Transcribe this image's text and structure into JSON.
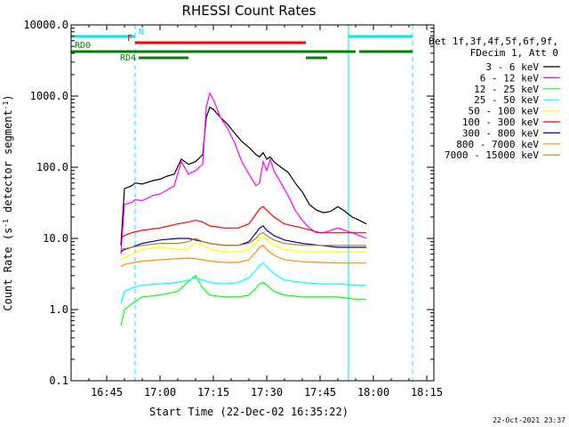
{
  "chart_data": {
    "type": "line",
    "title": "RHESSI Count Rates",
    "xlabel": "Start Time (22-Dec-02 16:35:22)",
    "ylabel_main": "Count Rate (s",
    "ylabel_sup1": "-1",
    "ylabel_mid": " detector segment",
    "ylabel_sup2": "-1",
    "ylabel_end": ")",
    "y_scale": "log",
    "xlim": [
      "16:35",
      "18:17"
    ],
    "ylim": [
      0.1,
      10000
    ],
    "x_ticks": [
      "16:45",
      "17:00",
      "17:15",
      "17:30",
      "17:45",
      "18:00",
      "18:15"
    ],
    "y_ticks": [
      "0.1",
      "1.0",
      "10.0",
      "100.0",
      "1000.0",
      "10000.0"
    ],
    "legend_header": [
      "Det 1f,3f,4f,5f,6f,9f,",
      "FDecim 1, Att 0"
    ],
    "legend_placement": "right",
    "timestamp": "22-Oct-2021 23:37",
    "vertical_lines": [
      {
        "time": "16:35",
        "style": "solid",
        "color": "#00e5ee"
      },
      {
        "time": "16:53",
        "style": "dashed",
        "color": "#00e5ee"
      },
      {
        "time": "17:53",
        "style": "solid",
        "color": "#00e5ee"
      },
      {
        "time": "18:11",
        "style": "dashed",
        "color": "#00e5ee"
      }
    ],
    "flag_bars": [
      {
        "label": "N",
        "color": "#00e5ee",
        "segments": [
          [
            "16:35",
            "16:53"
          ],
          [
            "17:53",
            "18:11"
          ]
        ]
      },
      {
        "label": "F",
        "color": "#ff0000",
        "segments": [
          [
            "16:53",
            "17:41"
          ]
        ]
      },
      {
        "label": "RD0",
        "color": "#008000",
        "segments": [
          [
            "16:35",
            "17:55"
          ],
          [
            "17:56",
            "18:11"
          ]
        ]
      },
      {
        "label": "RD4",
        "color": "#008000",
        "segments": [
          [
            "16:54",
            "17:08"
          ],
          [
            "17:41",
            "17:47"
          ]
        ]
      }
    ],
    "series": [
      {
        "name": "3 - 6 keV",
        "color": "#000000",
        "x": [
          "16:49",
          "16:50",
          "16:52",
          "16:53",
          "16:55",
          "16:58",
          "17:00",
          "17:02",
          "17:04",
          "17:06",
          "17:08",
          "17:10",
          "17:12",
          "17:13",
          "17:14",
          "17:15",
          "17:17",
          "17:19",
          "17:21",
          "17:23",
          "17:25",
          "17:27",
          "17:28",
          "17:29",
          "17:30",
          "17:31",
          "17:32",
          "17:34",
          "17:36",
          "17:38",
          "17:40",
          "17:42",
          "17:44",
          "17:46",
          "17:48",
          "17:50",
          "17:52",
          "17:54",
          "17:56",
          "17:58"
        ],
        "y": [
          8,
          50,
          55,
          60,
          58,
          65,
          68,
          75,
          80,
          130,
          110,
          120,
          150,
          500,
          700,
          650,
          500,
          400,
          300,
          230,
          190,
          150,
          140,
          160,
          130,
          140,
          120,
          100,
          85,
          60,
          45,
          30,
          25,
          23,
          24,
          28,
          24,
          20,
          18,
          16
        ]
      },
      {
        "name": "6 - 12 keV",
        "color": "#ff00ff",
        "x": [
          "16:49",
          "16:50",
          "16:52",
          "16:53",
          "16:55",
          "16:58",
          "17:00",
          "17:02",
          "17:04",
          "17:06",
          "17:08",
          "17:10",
          "17:12",
          "17:13",
          "17:14",
          "17:15",
          "17:17",
          "17:19",
          "17:21",
          "17:23",
          "17:25",
          "17:27",
          "17:28",
          "17:29",
          "17:30",
          "17:31",
          "17:32",
          "17:34",
          "17:36",
          "17:38",
          "17:40",
          "17:42",
          "17:44",
          "17:46",
          "17:48",
          "17:50",
          "17:52",
          "17:54",
          "17:56",
          "17:58"
        ],
        "y": [
          6,
          30,
          32,
          35,
          34,
          40,
          42,
          48,
          55,
          120,
          80,
          90,
          110,
          700,
          1100,
          900,
          500,
          350,
          220,
          120,
          80,
          55,
          60,
          120,
          90,
          130,
          90,
          60,
          40,
          25,
          18,
          14,
          12,
          12,
          13,
          14,
          13,
          12,
          11,
          10
        ]
      },
      {
        "name": "12 - 25 keV",
        "color": "#00ff00",
        "x": [
          "16:49",
          "16:50",
          "16:52",
          "16:55",
          "17:00",
          "17:05",
          "17:08",
          "17:10",
          "17:12",
          "17:14",
          "17:18",
          "17:22",
          "17:25",
          "17:27",
          "17:28",
          "17:29",
          "17:30",
          "17:32",
          "17:35",
          "17:40",
          "17:45",
          "17:50",
          "17:55",
          "17:58"
        ],
        "y": [
          0.6,
          1.0,
          1.2,
          1.5,
          1.6,
          1.8,
          2.5,
          3.0,
          2.0,
          1.6,
          1.5,
          1.5,
          1.6,
          2.0,
          2.3,
          2.4,
          2.2,
          1.8,
          1.6,
          1.5,
          1.5,
          1.5,
          1.4,
          1.4
        ]
      },
      {
        "name": "25 - 50 keV",
        "color": "#00ffff",
        "x": [
          "16:49",
          "16:50",
          "16:52",
          "16:55",
          "17:00",
          "17:05",
          "17:08",
          "17:10",
          "17:12",
          "17:14",
          "17:18",
          "17:22",
          "17:25",
          "17:27",
          "17:28",
          "17:29",
          "17:30",
          "17:32",
          "17:35",
          "17:40",
          "17:45",
          "17:50",
          "17:55",
          "17:58"
        ],
        "y": [
          1.2,
          1.8,
          2.0,
          2.2,
          2.3,
          2.4,
          2.6,
          2.8,
          2.6,
          2.4,
          2.3,
          2.4,
          2.8,
          3.6,
          4.2,
          4.5,
          4.0,
          3.2,
          2.6,
          2.4,
          2.3,
          2.3,
          2.2,
          2.2
        ]
      },
      {
        "name": "50 - 100 keV",
        "color": "#ffff00",
        "x": [
          "16:49",
          "16:52",
          "16:55",
          "17:00",
          "17:05",
          "17:08",
          "17:10",
          "17:12",
          "17:14",
          "17:18",
          "17:22",
          "17:25",
          "17:27",
          "17:28",
          "17:29",
          "17:30",
          "17:32",
          "17:35",
          "17:40",
          "17:45",
          "17:50",
          "17:55",
          "17:58"
        ],
        "y": [
          5,
          6,
          7,
          7.5,
          7,
          7,
          9,
          8,
          7,
          6.5,
          6.5,
          7,
          8.5,
          10,
          10.5,
          9.5,
          8,
          7,
          6.5,
          6.5,
          6.5,
          6.5,
          6.5
        ]
      },
      {
        "name": "100 - 300 keV",
        "color": "#ff0000",
        "x": [
          "16:49",
          "16:50",
          "16:52",
          "16:55",
          "17:00",
          "17:05",
          "17:08",
          "17:10",
          "17:12",
          "17:14",
          "17:18",
          "17:22",
          "17:25",
          "17:27",
          "17:28",
          "17:29",
          "17:30",
          "17:32",
          "17:35",
          "17:40",
          "17:45",
          "17:50",
          "17:55",
          "17:58"
        ],
        "y": [
          10,
          11,
          12,
          13,
          14,
          16,
          17,
          18,
          17,
          15,
          14,
          14,
          16,
          22,
          26,
          28,
          25,
          20,
          16,
          14,
          12,
          12,
          12,
          12
        ]
      },
      {
        "name": "300 - 800 keV",
        "color": "#0000cd",
        "x": [
          "16:49",
          "16:50",
          "16:52",
          "16:55",
          "17:00",
          "17:05",
          "17:08",
          "17:10",
          "17:12",
          "17:14",
          "17:18",
          "17:22",
          "17:25",
          "17:27",
          "17:28",
          "17:29",
          "17:30",
          "17:32",
          "17:35",
          "17:40",
          "17:45",
          "17:50",
          "17:55",
          "17:58"
        ],
        "y": [
          6.5,
          7,
          7.5,
          8.5,
          9.5,
          10,
          10,
          9.5,
          9,
          8.5,
          8,
          8,
          9,
          12,
          14,
          15,
          13,
          11,
          9.5,
          8.5,
          8,
          7.5,
          7.5,
          7.5
        ]
      },
      {
        "name": "800 - 7000 keV",
        "color": "#ff8c00",
        "x": [
          "16:49",
          "16:50",
          "16:52",
          "16:55",
          "17:00",
          "17:05",
          "17:08",
          "17:10",
          "17:12",
          "17:14",
          "17:18",
          "17:22",
          "17:25",
          "17:27",
          "17:28",
          "17:29",
          "17:30",
          "17:32",
          "17:35",
          "17:40",
          "17:45",
          "17:50",
          "17:55",
          "17:58"
        ],
        "y": [
          4,
          4.3,
          4.5,
          4.8,
          5,
          5.2,
          5.3,
          5.2,
          5,
          4.8,
          4.6,
          4.6,
          5,
          6.5,
          7.5,
          8,
          7,
          5.8,
          5,
          4.7,
          4.6,
          4.5,
          4.5,
          4.5
        ]
      },
      {
        "name": "7000 - 15000 keV",
        "color": "#b8860b",
        "x": [
          "16:49",
          "16:52",
          "16:55",
          "17:00",
          "17:05",
          "17:08",
          "17:10",
          "17:12",
          "17:14",
          "17:18",
          "17:22",
          "17:25",
          "17:27",
          "17:28",
          "17:29",
          "17:30",
          "17:32",
          "17:35",
          "17:40",
          "17:45",
          "17:50",
          "17:55",
          "17:58"
        ],
        "y": [
          7,
          7.5,
          8,
          8.5,
          8.5,
          9,
          10,
          9,
          8.5,
          8,
          8,
          8.5,
          10,
          11.5,
          12,
          11,
          9.5,
          8.5,
          8,
          8,
          8,
          8,
          8
        ]
      }
    ]
  }
}
